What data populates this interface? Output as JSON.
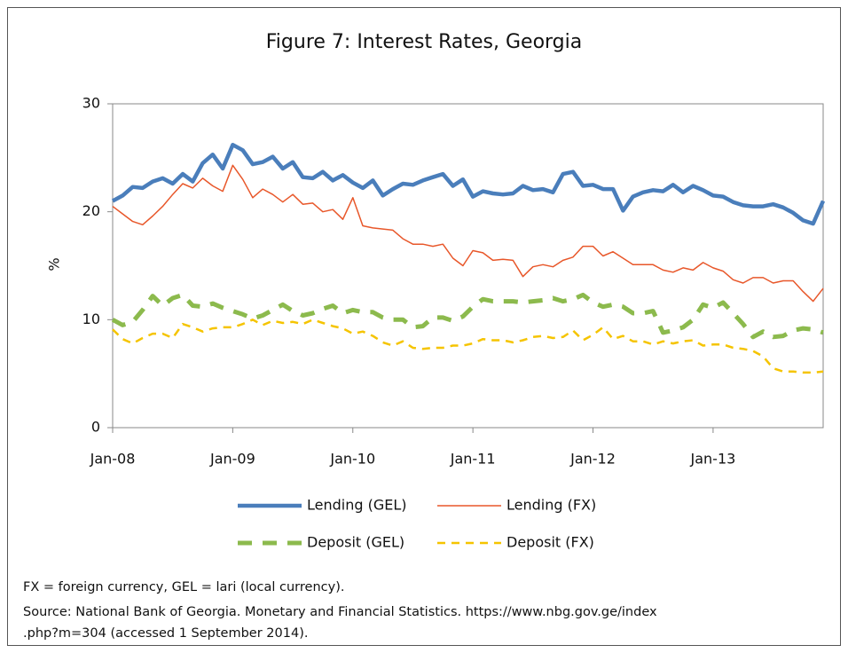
{
  "chart_data": {
    "type": "line",
    "title": "Figure 7: Interest Rates, Georgia",
    "y_label": "%",
    "categories": [
      "Jan-08",
      null,
      null,
      null,
      null,
      null,
      null,
      null,
      null,
      null,
      null,
      null,
      "Jan-09",
      null,
      null,
      null,
      null,
      null,
      null,
      null,
      null,
      null,
      null,
      null,
      "Jan-10",
      null,
      null,
      null,
      null,
      null,
      null,
      null,
      null,
      null,
      null,
      null,
      "Jan-11",
      null,
      null,
      null,
      null,
      null,
      null,
      null,
      null,
      null,
      null,
      null,
      "Jan-12",
      null,
      null,
      null,
      null,
      null,
      null,
      null,
      null,
      null,
      null,
      null,
      "Jan-13",
      null,
      null,
      null,
      null,
      null,
      null,
      null,
      null,
      null,
      null,
      null
    ],
    "ylim": [
      0,
      30
    ],
    "yticks": [
      0,
      10,
      20,
      30
    ],
    "grid": false,
    "legend": "bottom",
    "series": [
      {
        "name": "Lending (GEL)",
        "color": "#4a7ebb",
        "values": [
          21.0,
          21.5,
          22.3,
          22.2,
          22.8,
          23.1,
          22.6,
          23.5,
          22.8,
          24.5,
          25.3,
          24.0,
          26.2,
          25.7,
          24.4,
          24.6,
          25.1,
          24.0,
          24.6,
          23.2,
          23.1,
          23.7,
          22.9,
          23.4,
          22.7,
          22.2,
          22.9,
          21.5,
          22.1,
          22.6,
          22.5,
          22.9,
          23.2,
          23.5,
          22.4,
          23.0,
          21.4,
          21.9,
          21.7,
          21.6,
          21.7,
          22.4,
          22.0,
          22.1,
          21.8,
          23.5,
          23.7,
          22.4,
          22.5,
          22.1,
          22.1,
          20.1,
          21.4,
          21.8,
          22.0,
          21.9,
          22.5,
          21.8,
          22.4,
          22.0,
          21.5,
          21.4,
          20.9,
          20.6,
          20.5,
          20.5,
          20.7,
          20.4,
          19.9,
          19.2,
          18.9,
          21.0
        ]
      },
      {
        "name": "Lending (FX)",
        "color": "#e8572a",
        "values": [
          20.5,
          19.8,
          19.1,
          18.8,
          19.6,
          20.5,
          21.6,
          22.6,
          22.2,
          23.1,
          22.4,
          21.9,
          24.3,
          23.0,
          21.3,
          22.1,
          21.6,
          20.9,
          21.6,
          20.7,
          20.8,
          20.0,
          20.2,
          19.3,
          21.3,
          18.7,
          18.5,
          18.4,
          18.3,
          17.5,
          17.0,
          17.0,
          16.8,
          17.0,
          15.7,
          15.0,
          16.4,
          16.2,
          15.5,
          15.6,
          15.5,
          14.0,
          14.9,
          15.1,
          14.9,
          15.5,
          15.8,
          16.8,
          16.8,
          15.9,
          16.3,
          15.7,
          15.1,
          15.1,
          15.1,
          14.6,
          14.4,
          14.8,
          14.6,
          15.3,
          14.8,
          14.5,
          13.7,
          13.4,
          13.9,
          13.9,
          13.4,
          13.6,
          13.6,
          12.6,
          11.7,
          12.9
        ]
      },
      {
        "name": "Deposit (GEL)",
        "color": "#8cba4d",
        "values": [
          10.0,
          9.5,
          9.8,
          10.9,
          12.2,
          11.3,
          12.0,
          12.3,
          11.3,
          11.2,
          11.5,
          11.1,
          10.8,
          10.5,
          10.1,
          10.4,
          10.9,
          11.4,
          10.8,
          10.4,
          10.6,
          11.0,
          11.3,
          10.6,
          10.9,
          10.7,
          10.7,
          10.2,
          10.0,
          10.0,
          9.3,
          9.4,
          10.2,
          10.2,
          9.9,
          10.3,
          11.2,
          11.9,
          11.7,
          11.7,
          11.7,
          11.6,
          11.7,
          11.8,
          12.0,
          11.7,
          11.9,
          12.3,
          11.6,
          11.2,
          11.4,
          11.2,
          10.6,
          10.6,
          10.8,
          8.8,
          9.0,
          9.3,
          10.0,
          11.4,
          11.1,
          11.6,
          10.6,
          9.6,
          8.4,
          8.9,
          8.4,
          8.5,
          9.0,
          9.2,
          9.1,
          8.8
        ]
      },
      {
        "name": "Deposit (FX)",
        "color": "#f5c400",
        "values": [
          9.1,
          8.2,
          7.8,
          8.3,
          8.7,
          8.7,
          8.3,
          9.6,
          9.3,
          8.9,
          9.2,
          9.3,
          9.3,
          9.6,
          10.0,
          9.5,
          9.9,
          9.7,
          9.8,
          9.6,
          10.0,
          9.7,
          9.4,
          9.2,
          8.7,
          8.9,
          8.5,
          7.9,
          7.6,
          8.0,
          7.4,
          7.3,
          7.4,
          7.4,
          7.6,
          7.6,
          7.8,
          8.2,
          8.1,
          8.1,
          7.9,
          8.1,
          8.4,
          8.5,
          8.3,
          8.4,
          9.0,
          8.1,
          8.6,
          9.3,
          8.2,
          8.5,
          8.0,
          8.0,
          7.7,
          8.0,
          7.8,
          8.0,
          8.1,
          7.6,
          7.7,
          7.7,
          7.4,
          7.3,
          7.1,
          6.6,
          5.5,
          5.2,
          5.2,
          5.1,
          5.1,
          5.2
        ]
      }
    ],
    "notes": [
      "FX = foreign currency, GEL =  lari (local currency).",
      "Source: National Bank of Georgia. Monetary and Financial Statistics. https://www.nbg.gov.ge/index",
      ".php?m=304 (accessed 1 September 2014)."
    ]
  }
}
